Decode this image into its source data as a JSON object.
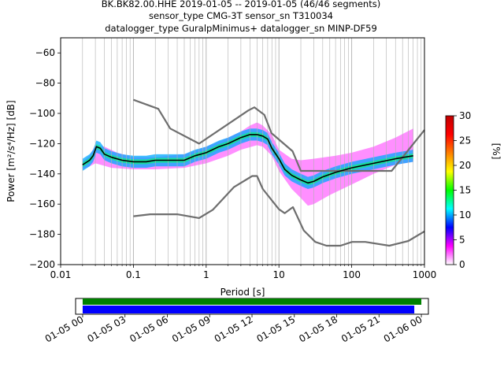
{
  "header": {
    "line1": "BK.BK82.00.HHE   2019-01-05 -- 2019-01-05  (46/46 segments)",
    "line2": "sensor_type CMG-3T sensor_sn T310034",
    "line3": "datalogger_type GuralpMinimus+ datalogger_sn MINP-DF59"
  },
  "chart_data": [
    {
      "type": "heatmap",
      "subtype": "ppsd",
      "xlabel": "Period [s]",
      "ylabel": "Power [m²/s⁴/Hz] [dB]",
      "xscale": "log",
      "xlim": [
        0.01,
        1000
      ],
      "ylim": [
        -200,
        -50
      ],
      "x_ticks": [
        {
          "v": 0.01,
          "label": "0.01"
        },
        {
          "v": 0.1,
          "label": "0.1"
        },
        {
          "v": 1,
          "label": "1"
        },
        {
          "v": 10,
          "label": "10"
        },
        {
          "v": 100,
          "label": "100"
        },
        {
          "v": 1000,
          "label": "1000"
        }
      ],
      "y_ticks": [
        {
          "v": -60,
          "label": "−60"
        },
        {
          "v": -80,
          "label": "−80"
        },
        {
          "v": -100,
          "label": "−100"
        },
        {
          "v": -120,
          "label": "−120"
        },
        {
          "v": -140,
          "label": "−140"
        },
        {
          "v": -160,
          "label": "−160"
        },
        {
          "v": -180,
          "label": "−180"
        },
        {
          "v": -200,
          "label": "−200"
        }
      ],
      "grid_x": "log-major-and-minor",
      "series": [
        {
          "role": "noise-model-high",
          "color": "#6e6e6e",
          "points": [
            [
              0.1,
              -91
            ],
            [
              0.22,
              -97
            ],
            [
              0.32,
              -110
            ],
            [
              0.8,
              -120
            ],
            [
              3.8,
              -98
            ],
            [
              4.6,
              -96
            ],
            [
              6.3,
              -101
            ],
            [
              7.9,
              -113
            ],
            [
              15.4,
              -125
            ],
            [
              20,
              -138
            ],
            [
              354,
              -138
            ],
            [
              1000,
              -111
            ]
          ]
        },
        {
          "role": "noise-model-low",
          "color": "#6e6e6e",
          "points": [
            [
              0.1,
              -168
            ],
            [
              0.17,
              -166.7
            ],
            [
              0.4,
              -166.7
            ],
            [
              0.8,
              -169.2
            ],
            [
              1.24,
              -163.7
            ],
            [
              2.4,
              -148.8
            ],
            [
              4.3,
              -141.4
            ],
            [
              5,
              -141.4
            ],
            [
              6,
              -150
            ],
            [
              10,
              -163.4
            ],
            [
              12,
              -166
            ],
            [
              15.6,
              -162
            ],
            [
              21.9,
              -177.4
            ],
            [
              31.6,
              -185
            ],
            [
              45,
              -187.5
            ],
            [
              70,
              -187.5
            ],
            [
              101,
              -185
            ],
            [
              154,
              -185
            ],
            [
              328,
              -187.5
            ],
            [
              600,
              -184.4
            ],
            [
              1000,
              -178
            ]
          ]
        },
        {
          "role": "mean-psd",
          "color": "#000000",
          "points": [
            [
              0.02,
              -134
            ],
            [
              0.025,
              -131
            ],
            [
              0.028,
              -128
            ],
            [
              0.031,
              -122
            ],
            [
              0.035,
              -123
            ],
            [
              0.04,
              -127
            ],
            [
              0.05,
              -129
            ],
            [
              0.07,
              -131
            ],
            [
              0.1,
              -132
            ],
            [
              0.15,
              -132
            ],
            [
              0.2,
              -131
            ],
            [
              0.3,
              -131
            ],
            [
              0.5,
              -131
            ],
            [
              0.7,
              -128
            ],
            [
              1,
              -126
            ],
            [
              1.5,
              -122
            ],
            [
              2,
              -120
            ],
            [
              3,
              -116
            ],
            [
              4,
              -114
            ],
            [
              5,
              -114
            ],
            [
              6,
              -115
            ],
            [
              7,
              -117
            ],
            [
              8,
              -123
            ],
            [
              10,
              -130
            ],
            [
              12,
              -137
            ],
            [
              15,
              -141
            ],
            [
              20,
              -144
            ],
            [
              25,
              -146
            ],
            [
              30,
              -145
            ],
            [
              40,
              -142
            ],
            [
              60,
              -139
            ],
            [
              100,
              -136
            ],
            [
              200,
              -133
            ],
            [
              400,
              -130
            ],
            [
              700,
              -128
            ]
          ]
        }
      ],
      "density_band": {
        "upper_edge": [
          [
            0.02,
            -132
          ],
          [
            0.025,
            -128
          ],
          [
            0.03,
            -121
          ],
          [
            0.04,
            -122
          ],
          [
            0.06,
            -126
          ],
          [
            0.1,
            -129
          ],
          [
            0.2,
            -129
          ],
          [
            0.5,
            -127
          ],
          [
            1,
            -122
          ],
          [
            2,
            -116
          ],
          [
            3,
            -112
          ],
          [
            4,
            -108
          ],
          [
            5,
            -106
          ],
          [
            6,
            -108
          ],
          [
            8,
            -114
          ],
          [
            10,
            -124
          ],
          [
            15,
            -130
          ],
          [
            20,
            -131
          ],
          [
            30,
            -130
          ],
          [
            60,
            -128
          ],
          [
            100,
            -126
          ],
          [
            200,
            -122
          ],
          [
            400,
            -116
          ],
          [
            700,
            -110
          ]
        ],
        "lower_edge": [
          [
            0.02,
            -137
          ],
          [
            0.025,
            -135
          ],
          [
            0.03,
            -133
          ],
          [
            0.05,
            -136
          ],
          [
            0.1,
            -137
          ],
          [
            0.2,
            -137
          ],
          [
            0.5,
            -136
          ],
          [
            1,
            -133
          ],
          [
            2,
            -128
          ],
          [
            3,
            -124
          ],
          [
            5,
            -121
          ],
          [
            6,
            -122
          ],
          [
            8,
            -128
          ],
          [
            10,
            -138
          ],
          [
            15,
            -150
          ],
          [
            20,
            -156
          ],
          [
            25,
            -161
          ],
          [
            30,
            -160
          ],
          [
            50,
            -154
          ],
          [
            100,
            -147
          ],
          [
            200,
            -140
          ],
          [
            400,
            -134
          ],
          [
            700,
            -132
          ]
        ],
        "core_color": "#00aaff",
        "edge_color": "#ff33ff"
      },
      "colorbar": {
        "label": "[%]",
        "min": 0,
        "max": 30,
        "ticks": [
          {
            "v": 0,
            "label": "0"
          },
          {
            "v": 5,
            "label": "5"
          },
          {
            "v": 10,
            "label": "10"
          },
          {
            "v": 15,
            "label": "15"
          },
          {
            "v": 20,
            "label": "20"
          },
          {
            "v": 25,
            "label": "25"
          },
          {
            "v": 30,
            "label": "30"
          }
        ],
        "colormap": [
          "#ffffff",
          "#ff00ff",
          "#0000ff",
          "#00ffff",
          "#00ff00",
          "#ffff00",
          "#ff7f00",
          "#ff0000",
          "#bf0000"
        ]
      }
    },
    {
      "type": "timeline",
      "x_tick_labels": [
        "01-05 00",
        "01-05 03",
        "01-05 06",
        "01-05 09",
        "01-05 12",
        "01-05 15",
        "01-05 18",
        "01-05 21",
        "01-06 00"
      ],
      "xlim_hours": [
        -0.5,
        24.5
      ],
      "bars": [
        {
          "role": "data-coverage",
          "color": "#008000",
          "start_hours": 0,
          "end_hours": 24.0
        },
        {
          "role": "used-segments",
          "color": "#0000ff",
          "start_hours": 0,
          "end_hours": 23.5
        }
      ]
    }
  ]
}
